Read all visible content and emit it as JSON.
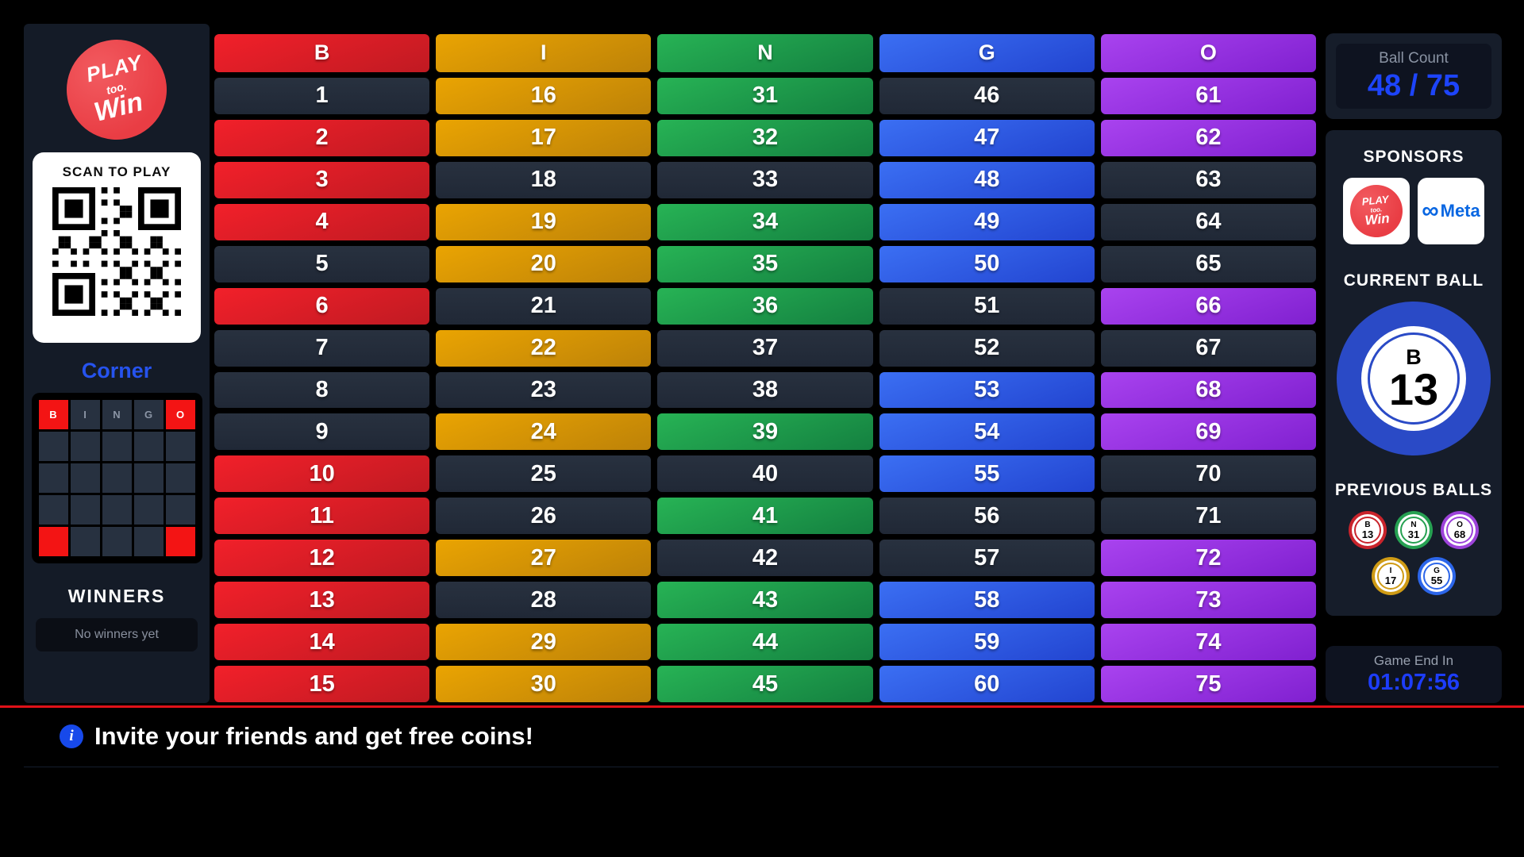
{
  "brand": {
    "word1": "PLAY",
    "word2": "too.",
    "word3": "Win"
  },
  "left_sidebar": {
    "scan_card": {
      "title": "SCAN TO PLAY"
    },
    "pattern": {
      "name": "Corner",
      "headers": [
        "B",
        "I",
        "N",
        "G",
        "O"
      ],
      "rows": 5,
      "cols": 5,
      "highlighted_cells": [
        [
          0,
          0
        ],
        [
          0,
          4
        ],
        [
          4,
          0
        ],
        [
          4,
          4
        ]
      ]
    },
    "winners": {
      "title": "WINNERS",
      "empty_text": "No winners yet"
    }
  },
  "board": {
    "columns": [
      {
        "letter": "B",
        "color": "red",
        "numbers": [
          1,
          2,
          3,
          4,
          5,
          6,
          7,
          8,
          9,
          10,
          11,
          12,
          13,
          14,
          15
        ],
        "called": [
          2,
          3,
          4,
          6,
          10,
          11,
          12,
          13,
          14,
          15
        ]
      },
      {
        "letter": "I",
        "color": "orange",
        "numbers": [
          16,
          17,
          18,
          19,
          20,
          21,
          22,
          23,
          24,
          25,
          26,
          27,
          28,
          29,
          30
        ],
        "called": [
          16,
          17,
          19,
          20,
          22,
          24,
          27,
          29,
          30
        ]
      },
      {
        "letter": "N",
        "color": "green",
        "numbers": [
          31,
          32,
          33,
          34,
          35,
          36,
          37,
          38,
          39,
          40,
          41,
          42,
          43,
          44,
          45
        ],
        "called": [
          31,
          32,
          34,
          35,
          36,
          39,
          41,
          43,
          44,
          45
        ]
      },
      {
        "letter": "G",
        "color": "blue",
        "numbers": [
          46,
          47,
          48,
          49,
          50,
          51,
          52,
          53,
          54,
          55,
          56,
          57,
          58,
          59,
          60
        ],
        "called": [
          47,
          48,
          49,
          50,
          53,
          54,
          55,
          58,
          59,
          60
        ]
      },
      {
        "letter": "O",
        "color": "purple",
        "numbers": [
          61,
          62,
          63,
          64,
          65,
          66,
          67,
          68,
          69,
          70,
          71,
          72,
          73,
          74,
          75
        ],
        "called": [
          61,
          62,
          66,
          68,
          69,
          72,
          73,
          74,
          75
        ]
      }
    ]
  },
  "right_sidebar": {
    "ball_count": {
      "label": "Ball Count",
      "value": "48 / 75"
    },
    "sponsors": {
      "title": "SPONSORS",
      "items": [
        "Play too Win",
        "Meta"
      ],
      "meta_word": "Meta"
    },
    "current_ball": {
      "title": "CURRENT BALL",
      "letter": "B",
      "number": "13"
    },
    "previous_balls": {
      "title": "PREVIOUS BALLS",
      "balls": [
        {
          "letter": "B",
          "number": "13",
          "color": "red"
        },
        {
          "letter": "N",
          "number": "31",
          "color": "green"
        },
        {
          "letter": "O",
          "number": "68",
          "color": "purple"
        },
        {
          "letter": "I",
          "number": "17",
          "color": "gold"
        },
        {
          "letter": "G",
          "number": "55",
          "color": "blue"
        }
      ]
    },
    "game_end": {
      "label": "Game End In",
      "time": "01:07:56"
    }
  },
  "bottom_bar": {
    "message": "Invite your friends and get free coins!"
  },
  "colors": {
    "column_red": "#e02027",
    "column_orange": "#e5a004",
    "column_green": "#1ea24a",
    "column_blue": "#2e62e8",
    "column_purple": "#9a36e0",
    "uncalled_cell": "#232b39",
    "sidebar_bg": "#141b27",
    "count_blue": "#1d44fa",
    "timer_blue": "#1d3dfa",
    "pattern_highlight": "#f31414",
    "brand_red": "#e93d44",
    "separator_red": "#e01118"
  }
}
